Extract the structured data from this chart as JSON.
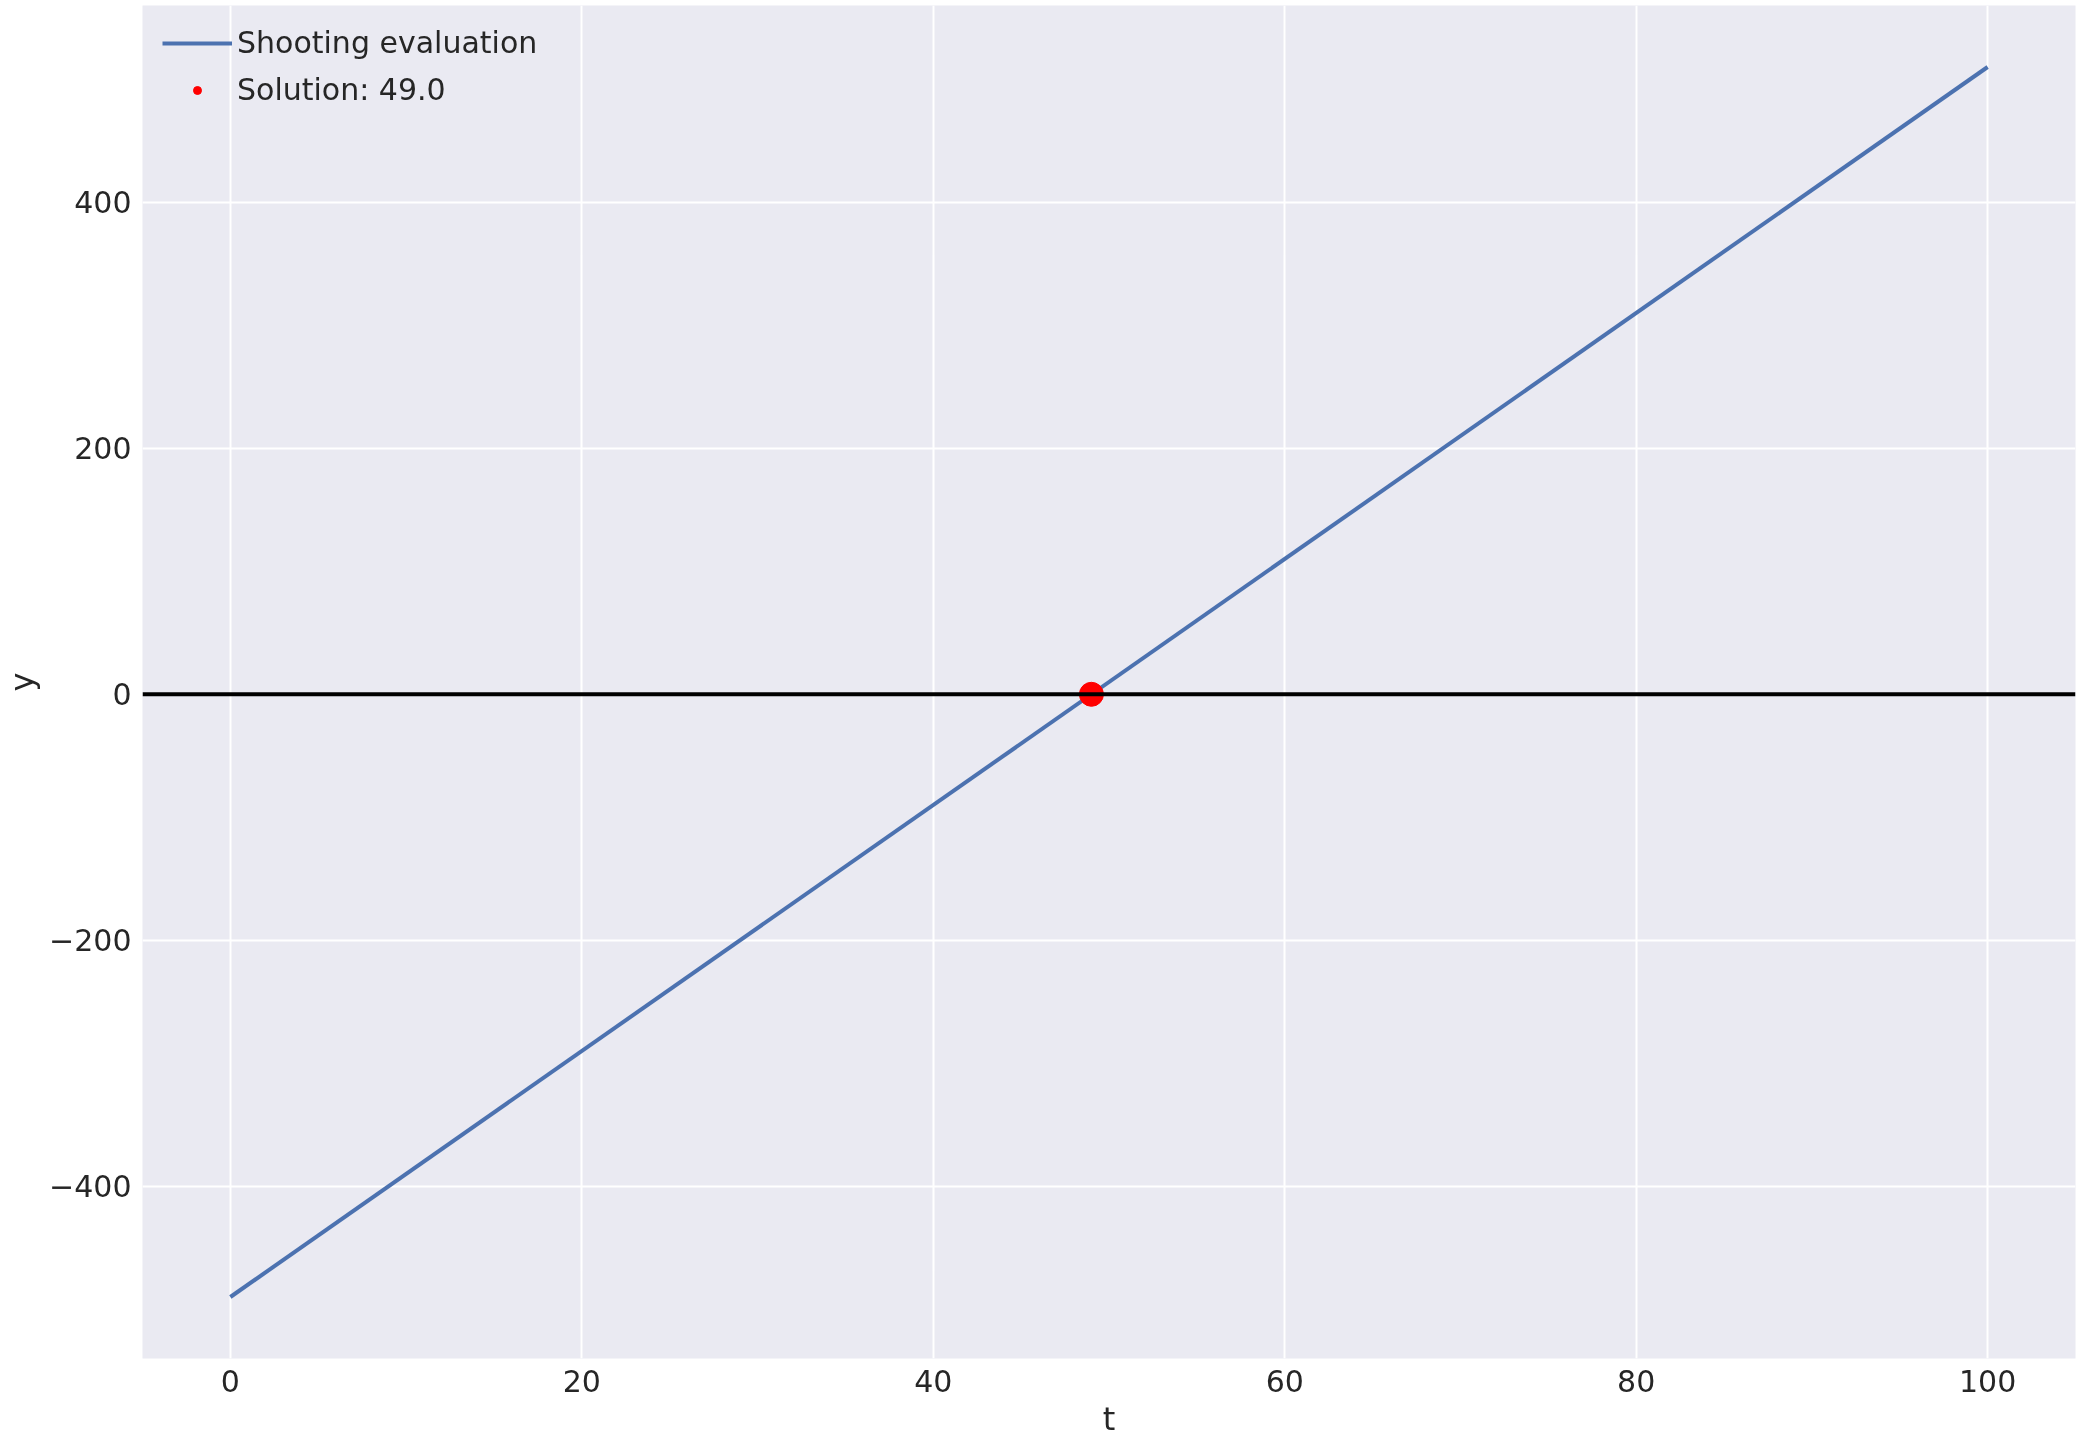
{
  "chart_data": {
    "type": "line",
    "xlabel": "t",
    "ylabel": "y",
    "xlim": [
      -5,
      105
    ],
    "ylim": [
      -540,
      560
    ],
    "xticks": [
      0,
      20,
      40,
      60,
      80,
      100
    ],
    "yticks": [
      {
        "value": -400,
        "label": "−400"
      },
      {
        "value": -200,
        "label": "−200"
      },
      0,
      200,
      400
    ],
    "grid": true,
    "legend": "top left",
    "series": [
      {
        "name": "Shooting evaluation",
        "color": "#4c72b0",
        "x": [
          0,
          100
        ],
        "values": [
          -490,
          510
        ]
      },
      {
        "name": "Solution: 49.0",
        "type": "scatter",
        "marker": "circle",
        "color": "#ff0000",
        "x": [
          49
        ],
        "values": [
          0
        ]
      }
    ],
    "ref_lines": [
      {
        "axis": "y",
        "value": 0,
        "color": "#000000"
      }
    ]
  }
}
